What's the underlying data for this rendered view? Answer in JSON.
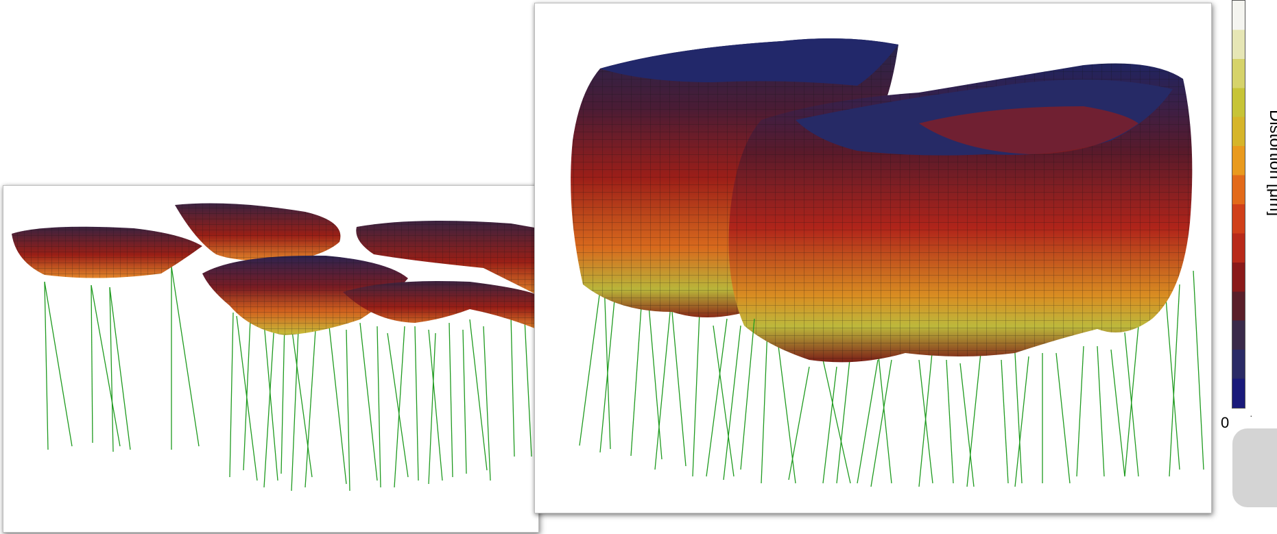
{
  "colorbar": {
    "label": "Distortion [μm]",
    "min_label": "0",
    "stops": [
      "#1a1a7a",
      "#2b2b66",
      "#3a2a4a",
      "#5a1f2a",
      "#8a1a1a",
      "#b82a1a",
      "#d0401a",
      "#e26a1a",
      "#e99a1e",
      "#d6b52a",
      "#c7c437",
      "#d6d36a",
      "#e6e6b5",
      "#f5f5f0"
    ]
  },
  "colors": {
    "wire": "#1e9a1e",
    "mesh_line": "#222222",
    "top_surface": "#26306e"
  },
  "panels": [
    {
      "name": "left-view",
      "description_shown": ""
    },
    {
      "name": "right-view",
      "description_shown": ""
    }
  ]
}
